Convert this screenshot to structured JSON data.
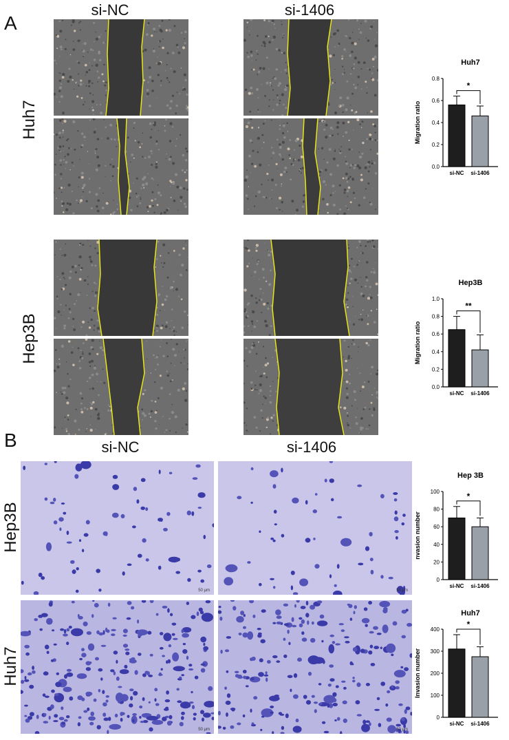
{
  "panels": {
    "A": {
      "letter": "A",
      "col_labels": [
        "si-NC",
        "si-1406"
      ],
      "row_labels": [
        "Huh7",
        "Hep3B"
      ]
    },
    "B": {
      "letter": "B",
      "col_labels": [
        "si-NC",
        "si-1406"
      ],
      "row_labels": [
        "Hep3B",
        "Huh7"
      ],
      "scale_bar_label": "50 μm"
    }
  },
  "colors": {
    "bar_nc": "#1e1e1e",
    "bar_si": "#9aa0a8",
    "wound_line": "#e6e619",
    "scratch_dark": "#3a3a3a",
    "cells_bg": "#6b6b6b",
    "crystal_bg": "#c9c6ea",
    "crystal_cell": "#3a3aa8"
  },
  "chart_data": [
    {
      "type": "bar",
      "title": "Huh7",
      "categories": [
        "si-NC",
        "si-1406"
      ],
      "values": [
        0.56,
        0.46
      ],
      "errors": [
        0.08,
        0.09
      ],
      "ylabel": "Migration ratio",
      "ylim": [
        0,
        0.8
      ],
      "yticks": [
        "0.0",
        "0.2",
        "0.4",
        "0.6",
        "0.8"
      ],
      "significance": "*"
    },
    {
      "type": "bar",
      "title": "Hep3B",
      "categories": [
        "si-NC",
        "si-1406"
      ],
      "values": [
        0.65,
        0.42
      ],
      "errors": [
        0.15,
        0.17
      ],
      "ylabel": "Migration ratio",
      "ylim": [
        0,
        1.0
      ],
      "yticks": [
        "0.0",
        "0.2",
        "0.4",
        "0.6",
        "0.8",
        "1.0"
      ],
      "significance": "**"
    },
    {
      "type": "bar",
      "title": "Hep 3B",
      "categories": [
        "si-NC",
        "si-1406"
      ],
      "values": [
        70,
        60
      ],
      "errors": [
        13,
        10
      ],
      "ylabel": "nvasion number",
      "ylim": [
        0,
        100
      ],
      "yticks": [
        "0",
        "20",
        "40",
        "60",
        "80",
        "100"
      ],
      "significance": "*"
    },
    {
      "type": "bar",
      "title": "Huh7",
      "categories": [
        "si-NC",
        "si-1406"
      ],
      "values": [
        310,
        275
      ],
      "errors": [
        65,
        45
      ],
      "ylabel": "Invasion number",
      "ylim": [
        0,
        400
      ],
      "yticks": [
        "0",
        "100",
        "200",
        "300",
        "400"
      ],
      "significance": "*"
    }
  ]
}
